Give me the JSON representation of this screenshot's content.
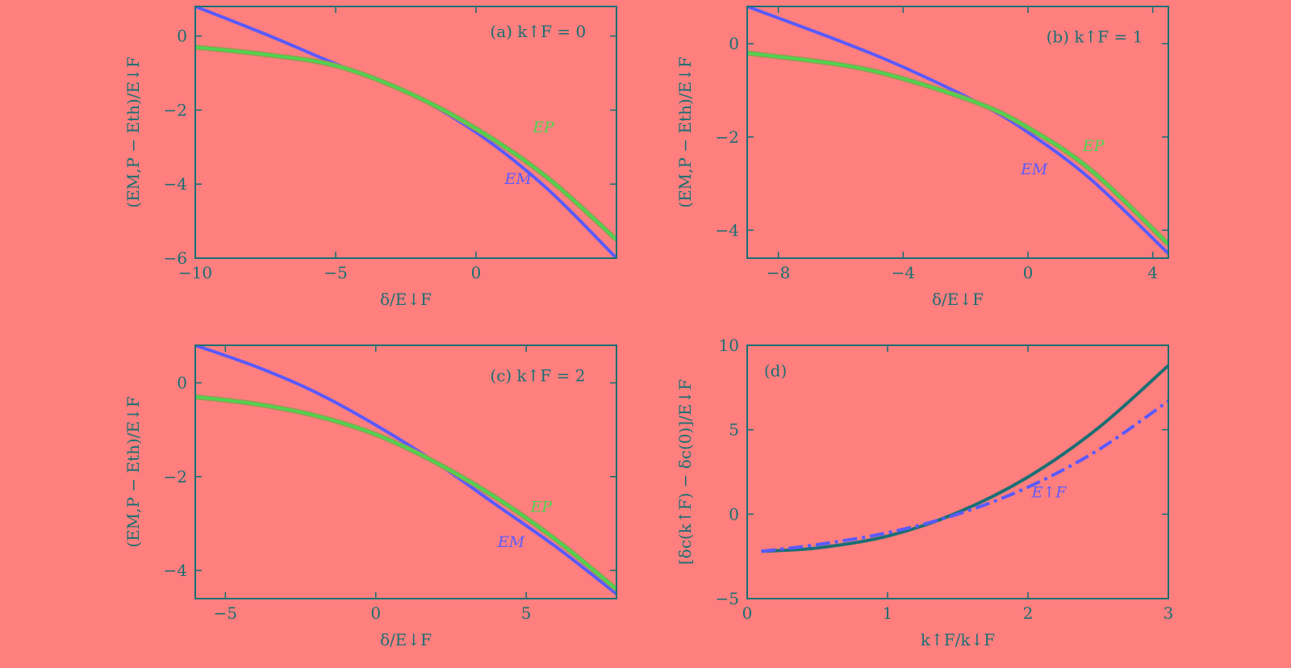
{
  "colors": {
    "background": "#ff7f7f",
    "axis": "#1a6f73",
    "EM": "#5a5aff",
    "EP": "#4fd34f",
    "EP_edge": "#9a9a55",
    "d_solid": "#1a6f73",
    "d_dashdot": "#5a5aff"
  },
  "chart_data": [
    {
      "id": "a",
      "type": "line",
      "panel_label": "(a) k↑F = 0",
      "xlabel": "δ/E↓F",
      "ylabel": "(EM,P − Eth)/E↓F",
      "xlim": [
        -10,
        5
      ],
      "ylim": [
        -6,
        0.8
      ],
      "xticks": [
        -10,
        -5,
        0
      ],
      "yticks": [
        0,
        -2,
        -4,
        -6
      ],
      "series": [
        {
          "name": "EM",
          "x": [
            -10,
            -7.5,
            -5,
            -2.5,
            0,
            2.5,
            5
          ],
          "y": [
            0.8,
            0.05,
            -0.75,
            -1.5,
            -2.6,
            -4.1,
            -6.0
          ]
        },
        {
          "name": "EP",
          "x": [
            -10,
            -7.5,
            -5,
            -2.5,
            0,
            2.5,
            5
          ],
          "y": [
            -0.3,
            -0.5,
            -0.8,
            -1.5,
            -2.5,
            -3.8,
            -5.5
          ]
        }
      ],
      "annotations": [
        {
          "text": "EP",
          "near_x": 2.4,
          "near_y": -2.6
        },
        {
          "text": "EM",
          "near_x": 1.5,
          "near_y": -4.0
        }
      ]
    },
    {
      "id": "b",
      "type": "line",
      "panel_label": "(b) k↑F = 1",
      "xlabel": "δ/E↓F",
      "ylabel": "(EM,P − Eth)/E↓F",
      "xlim": [
        -9,
        4.5
      ],
      "ylim": [
        -4.6,
        0.8
      ],
      "xticks": [
        -8,
        -4,
        0,
        4
      ],
      "yticks": [
        0,
        -2,
        -4
      ],
      "series": [
        {
          "name": "EM",
          "x": [
            -9,
            -6,
            -4,
            -1.5,
            0,
            2,
            4.5
          ],
          "y": [
            0.8,
            0.05,
            -0.5,
            -1.3,
            -1.9,
            -2.9,
            -4.5
          ]
        },
        {
          "name": "EP",
          "x": [
            -9,
            -6,
            -4,
            -1.5,
            0,
            2,
            4.5
          ],
          "y": [
            -0.2,
            -0.45,
            -0.75,
            -1.3,
            -1.8,
            -2.7,
            -4.3
          ]
        }
      ],
      "annotations": [
        {
          "text": "EP",
          "near_x": 2.1,
          "near_y": -2.3
        },
        {
          "text": "EM",
          "near_x": 0.2,
          "near_y": -2.8
        }
      ]
    },
    {
      "id": "c",
      "type": "line",
      "panel_label": "(c) k↑F = 2",
      "xlabel": "δ/E↓F",
      "ylabel": "(EM,P − Eth)/E↓F",
      "xlim": [
        -6,
        8
      ],
      "ylim": [
        -4.6,
        0.8
      ],
      "xticks": [
        -5,
        0,
        5
      ],
      "yticks": [
        0,
        -2,
        -4
      ],
      "series": [
        {
          "name": "EM",
          "x": [
            -6,
            -4,
            -2,
            0,
            2,
            4,
            6,
            8
          ],
          "y": [
            0.8,
            0.35,
            -0.2,
            -0.9,
            -1.7,
            -2.6,
            -3.5,
            -4.5
          ]
        },
        {
          "name": "EP",
          "x": [
            -6,
            -4,
            -2,
            0,
            2,
            4,
            6,
            8
          ],
          "y": [
            -0.3,
            -0.45,
            -0.7,
            -1.1,
            -1.7,
            -2.45,
            -3.35,
            -4.4
          ]
        }
      ],
      "annotations": [
        {
          "text": "EP",
          "near_x": 5.5,
          "near_y": -2.75
        },
        {
          "text": "EM",
          "near_x": 4.5,
          "near_y": -3.5
        }
      ]
    },
    {
      "id": "d",
      "type": "line",
      "panel_label": "(d)",
      "xlabel": "k↑F/k↓F",
      "ylabel": "[δc(k↑F) − δc(0)]/E↓F",
      "xlim": [
        0,
        3
      ],
      "ylim": [
        -5,
        10
      ],
      "xticks": [
        0,
        1,
        2,
        3
      ],
      "yticks": [
        10,
        5,
        0,
        -5
      ],
      "series": [
        {
          "name": "solid",
          "style": "solid",
          "x": [
            0.1,
            0.5,
            1.0,
            1.5,
            2.0,
            2.5,
            3.0
          ],
          "y": [
            -2.2,
            -2.0,
            -1.3,
            0.1,
            2.2,
            5.1,
            8.8
          ]
        },
        {
          "name": "E↑F",
          "style": "dash-dot",
          "x": [
            0.1,
            0.5,
            1.0,
            1.5,
            2.0,
            2.5,
            3.0
          ],
          "y": [
            -2.2,
            -1.8,
            -1.1,
            0.0,
            1.6,
            3.8,
            6.7
          ]
        }
      ],
      "annotations": [
        {
          "text": "E↑F",
          "near_x": 2.15,
          "near_y": 1.0
        }
      ]
    }
  ]
}
